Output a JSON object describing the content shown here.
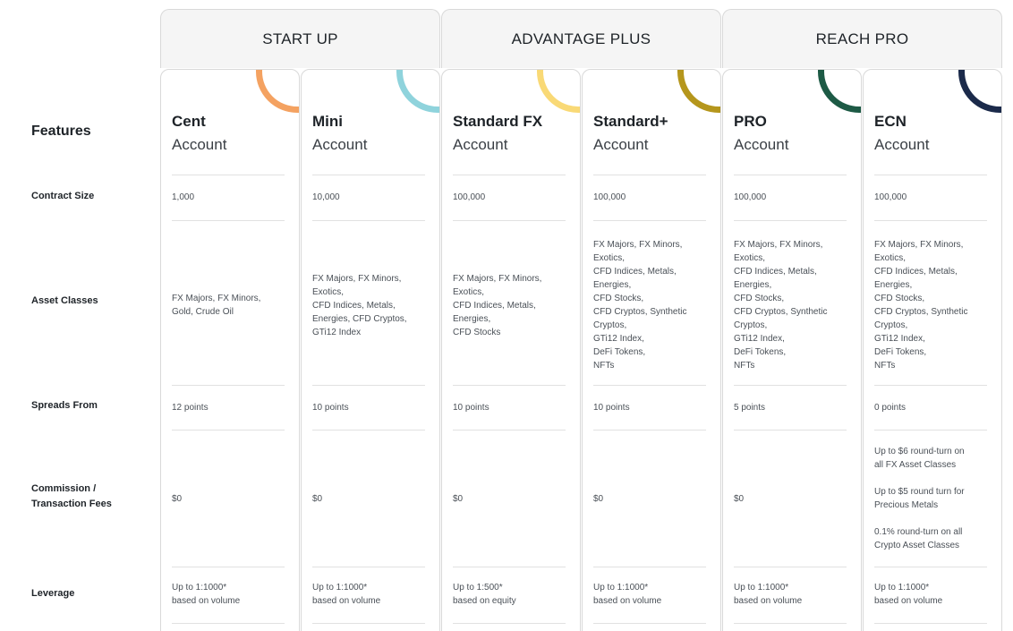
{
  "groups": [
    "START UP",
    "ADVANTAGE PLUS",
    "REACH PRO"
  ],
  "features_title": "Features",
  "row_labels": {
    "contract_size": "Contract Size",
    "asset_classes": "Asset Classes",
    "spreads_from": "Spreads From",
    "commission": "Commission / Transaction Fees",
    "leverage": "Leverage"
  },
  "accounts": [
    {
      "name": "Cent",
      "sub": "Account",
      "accent": "#f4a261",
      "contract_size": "1,000",
      "asset_classes": [
        "FX Majors, FX Minors,",
        "Gold, Crude Oil"
      ],
      "spreads_from": "12 points",
      "commission": [
        "$0"
      ],
      "leverage": [
        "Up to 1:1000*",
        "based on volume"
      ]
    },
    {
      "name": "Mini",
      "sub": "Account",
      "accent": "#8fd3dc",
      "contract_size": "10,000",
      "asset_classes": [
        "FX Majors, FX Minors,",
        "Exotics,",
        "CFD Indices, Metals,",
        "Energies, CFD Cryptos,",
        "GTi12 Index"
      ],
      "spreads_from": "10 points",
      "commission": [
        "$0"
      ],
      "leverage": [
        "Up to 1:1000*",
        "based on volume"
      ]
    },
    {
      "name": "Standard FX",
      "sub": "Account",
      "accent": "#f9d976",
      "contract_size": "100,000",
      "asset_classes": [
        "FX Majors, FX Minors,",
        "Exotics,",
        "CFD Indices, Metals,",
        "Energies,",
        "CFD Stocks"
      ],
      "spreads_from": "10 points",
      "commission": [
        "$0"
      ],
      "leverage": [
        "Up to 1:500*",
        "based on equity"
      ]
    },
    {
      "name": "Standard+",
      "sub": "Account",
      "accent": "#b5961c",
      "contract_size": "100,000",
      "asset_classes": [
        "FX Majors, FX Minors,",
        "Exotics,",
        "CFD Indices, Metals,",
        "Energies,",
        "CFD Stocks,",
        "CFD Cryptos, Synthetic",
        "Cryptos,",
        "GTi12 Index,",
        "DeFi Tokens,",
        "NFTs"
      ],
      "spreads_from": "10 points",
      "commission": [
        "$0"
      ],
      "leverage": [
        "Up to 1:1000*",
        "based on volume"
      ]
    },
    {
      "name": "PRO",
      "sub": "Account",
      "accent": "#1d5a45",
      "contract_size": "100,000",
      "asset_classes": [
        "FX Majors, FX Minors,",
        "Exotics,",
        "CFD Indices, Metals,",
        "Energies,",
        "CFD Stocks,",
        "CFD Cryptos, Synthetic",
        "Cryptos,",
        "GTi12 Index,",
        "DeFi Tokens,",
        "NFTs"
      ],
      "spreads_from": "5 points",
      "commission": [
        "$0"
      ],
      "leverage": [
        "Up to 1:1000*",
        "based on volume"
      ]
    },
    {
      "name": "ECN",
      "sub": "Account",
      "accent": "#1b2a4a",
      "contract_size": "100,000",
      "asset_classes": [
        "FX Majors, FX Minors,",
        "Exotics,",
        "CFD Indices, Metals,",
        "Energies,",
        "CFD Stocks,",
        "CFD Cryptos, Synthetic",
        "Cryptos,",
        "GTi12 Index,",
        "DeFi Tokens,",
        "NFTs"
      ],
      "spreads_from": "0 points",
      "commission": [
        "Up to $6 round-turn on",
        "all FX Asset Classes",
        "",
        "Up to $5 round turn for",
        "Precious Metals",
        "",
        "0.1% round-turn on all",
        "Crypto Asset Classes"
      ],
      "leverage": [
        "Up to 1:1000*",
        "based on volume"
      ]
    }
  ]
}
